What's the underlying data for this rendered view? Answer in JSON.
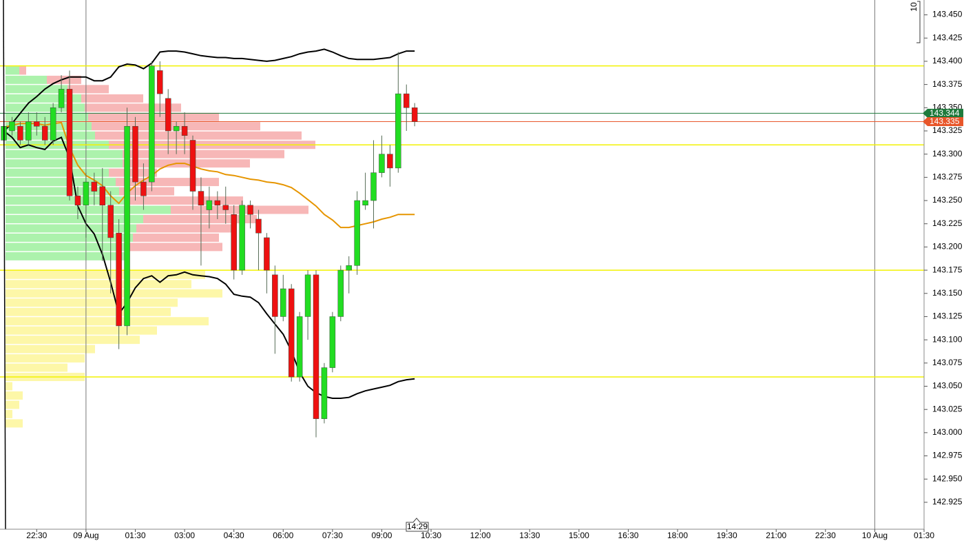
{
  "chart_data": {
    "type": "candlestick",
    "xlim": [
      -157,
      1530
    ],
    "xticks": [
      {
        "value": -90,
        "label": "22:30"
      },
      {
        "value": 0,
        "label": "09 Aug"
      },
      {
        "value": 90,
        "label": "01:30"
      },
      {
        "value": 180,
        "label": "03:00"
      },
      {
        "value": 270,
        "label": "04:30"
      },
      {
        "value": 360,
        "label": "06:00"
      },
      {
        "value": 450,
        "label": "07:30"
      },
      {
        "value": 540,
        "label": "09:00"
      },
      {
        "value": 630,
        "label": "10:30"
      },
      {
        "value": 720,
        "label": "12:00"
      },
      {
        "value": 810,
        "label": "13:30"
      },
      {
        "value": 900,
        "label": "15:00"
      },
      {
        "value": 990,
        "label": "16:30"
      },
      {
        "value": 1080,
        "label": "18:00"
      },
      {
        "value": 1170,
        "label": "19:30"
      },
      {
        "value": 1260,
        "label": "21:00"
      },
      {
        "value": 1350,
        "label": "22:30"
      },
      {
        "value": 1440,
        "label": "10 Aug"
      },
      {
        "value": 1530,
        "label": "01:30"
      }
    ],
    "separators": [
      0,
      1440
    ],
    "ylim": [
      142.896,
      143.466
    ],
    "yticks": [
      {
        "value": 143.45,
        "label": "143.450"
      },
      143.425,
      {
        "value": 143.4,
        "label": "143.400"
      },
      143.375,
      {
        "value": 143.35,
        "label": "143.350"
      },
      143.325,
      {
        "value": 143.3,
        "label": "143.300"
      },
      143.275,
      {
        "value": 143.25,
        "label": "143.250"
      },
      143.225,
      {
        "value": 143.2,
        "label": "143.200"
      },
      143.175,
      {
        "value": 143.15,
        "label": "143.150"
      },
      143.125,
      {
        "value": 143.1,
        "label": "143.100"
      },
      143.075,
      {
        "value": 143.05,
        "label": "143.050"
      },
      143.025,
      {
        "value": 143,
        "label": "143.000"
      },
      142.975,
      {
        "value": 142.95,
        "label": "142.950"
      },
      142.925
    ],
    "up_color": "#22dd22",
    "down_color": "#ee1111",
    "x": [
      -150,
      -135,
      -120,
      -105,
      -90,
      -75,
      -60,
      -45,
      -30,
      -15,
      0,
      15,
      30,
      45,
      60,
      75,
      90,
      105,
      120,
      135,
      150,
      165,
      180,
      195,
      210,
      225,
      240,
      255,
      270,
      285,
      300,
      315,
      330,
      345,
      360,
      375,
      390,
      405,
      420,
      435,
      450,
      465,
      480,
      495,
      510,
      525,
      540,
      555,
      570,
      585,
      600
    ],
    "open": [
      143.315,
      143.325,
      143.33,
      143.315,
      143.335,
      143.33,
      143.315,
      143.35,
      143.37,
      143.255,
      143.245,
      143.27,
      143.265,
      143.245,
      143.215,
      143.115,
      143.33,
      143.27,
      143.27,
      143.39,
      143.36,
      143.325,
      143.33,
      143.315,
      143.26,
      143.24,
      143.25,
      143.245,
      143.235,
      143.175,
      143.245,
      143.23,
      143.21,
      143.17,
      143.125,
      143.155,
      143.06,
      143.125,
      143.17,
      143.015,
      143.07,
      143.125,
      143.175,
      143.18,
      143.245,
      143.25,
      143.28,
      143.3,
      143.285,
      143.365,
      143.35
    ],
    "high": [
      143.335,
      143.34,
      143.335,
      143.345,
      143.345,
      143.34,
      143.355,
      143.385,
      143.39,
      143.265,
      143.28,
      143.28,
      143.285,
      143.26,
      143.23,
      143.35,
      143.34,
      143.29,
      143.4,
      143.4,
      143.37,
      143.335,
      143.345,
      143.32,
      143.275,
      143.265,
      143.26,
      143.265,
      143.245,
      143.25,
      143.25,
      143.24,
      143.215,
      143.18,
      143.17,
      143.16,
      143.13,
      143.175,
      143.175,
      143.075,
      143.13,
      143.18,
      143.19,
      143.26,
      143.28,
      143.315,
      143.32,
      143.31,
      143.41,
      143.375,
      143.355
    ],
    "low": [
      143.31,
      143.32,
      143.31,
      143.31,
      143.32,
      143.31,
      143.31,
      143.345,
      143.25,
      143.23,
      143.21,
      143.245,
      143.185,
      143.15,
      143.09,
      143.105,
      143.25,
      143.24,
      143.26,
      143.34,
      143.3,
      143.3,
      143.3,
      143.24,
      143.18,
      143.22,
      143.23,
      143.225,
      143.165,
      143.17,
      143.22,
      143.175,
      143.15,
      143.085,
      143.12,
      143.055,
      143.055,
      143.1,
      142.995,
      143.01,
      143.065,
      143.12,
      143.15,
      143.17,
      143.24,
      143.22,
      143.275,
      143.265,
      143.28,
      143.325,
      143.33
    ],
    "close": [
      143.33,
      143.335,
      143.315,
      143.335,
      143.33,
      143.315,
      143.35,
      143.37,
      143.255,
      143.245,
      143.27,
      143.26,
      143.245,
      143.21,
      143.115,
      143.33,
      143.27,
      143.255,
      143.395,
      143.365,
      143.325,
      143.33,
      143.32,
      143.26,
      143.245,
      143.25,
      143.245,
      143.24,
      143.175,
      143.245,
      143.235,
      143.215,
      143.175,
      143.125,
      143.155,
      143.06,
      143.125,
      143.17,
      143.015,
      143.07,
      143.125,
      143.175,
      143.18,
      143.25,
      143.25,
      143.28,
      143.3,
      143.285,
      143.365,
      143.35,
      143.335
    ],
    "lines": [
      {
        "color": "#000000",
        "values": [
          143.325,
          143.333,
          143.344,
          143.355,
          143.362,
          143.37,
          143.376,
          143.38,
          143.383,
          143.383,
          143.383,
          143.379,
          143.379,
          143.383,
          143.394,
          143.397,
          143.396,
          143.392,
          143.398,
          143.41,
          143.411,
          143.411,
          143.41,
          143.408,
          143.406,
          143.405,
          143.404,
          143.404,
          143.403,
          143.403,
          143.402,
          143.401,
          143.4,
          143.401,
          143.403,
          143.405,
          143.408,
          143.41,
          143.411,
          143.413,
          143.41,
          143.406,
          143.403,
          143.402,
          143.402,
          143.402,
          143.403,
          143.404,
          143.408,
          143.411,
          143.411
        ]
      },
      {
        "color": "#e69500",
        "values": [
          143.329,
          143.331,
          143.333,
          143.333,
          143.333,
          143.331,
          143.333,
          143.334,
          143.307,
          143.288,
          143.277,
          143.272,
          143.266,
          143.255,
          143.247,
          143.258,
          143.266,
          143.272,
          143.277,
          143.284,
          143.288,
          143.29,
          143.29,
          143.287,
          143.284,
          143.282,
          143.281,
          143.278,
          143.277,
          143.275,
          143.273,
          143.272,
          143.27,
          143.269,
          143.267,
          143.264,
          143.258,
          143.251,
          143.244,
          143.235,
          143.229,
          143.221,
          143.221,
          143.223,
          143.225,
          143.227,
          143.23,
          143.232,
          143.235,
          143.235,
          143.235
        ]
      },
      {
        "color": "#000000",
        "values": [
          143.325,
          143.318,
          143.307,
          143.31,
          143.307,
          143.305,
          143.314,
          143.318,
          143.296,
          143.244,
          143.225,
          143.214,
          143.192,
          143.162,
          143.128,
          143.14,
          143.156,
          143.166,
          143.169,
          143.162,
          143.169,
          143.17,
          143.173,
          143.17,
          143.169,
          143.168,
          143.166,
          143.16,
          143.149,
          143.147,
          143.146,
          143.14,
          143.128,
          143.117,
          143.106,
          143.088,
          143.065,
          143.05,
          143.043,
          143.039,
          143.037,
          143.037,
          143.038,
          143.042,
          143.045,
          143.047,
          143.049,
          143.051,
          143.055,
          143.057,
          143.058
        ]
      }
    ],
    "levels": [
      {
        "value": 143.395,
        "color": "#f2f200"
      },
      {
        "value": 143.31,
        "color": "#f2f200"
      },
      {
        "value": 143.175,
        "color": "#f2f200"
      },
      {
        "value": 143.06,
        "color": "#f2f200"
      }
    ],
    "price_tags": [
      {
        "value": 143.344,
        "color": "#1e7a3c"
      },
      {
        "value": 143.335,
        "color": "#e8562a"
      }
    ],
    "volume_profile": {
      "value_area": {
        "buy_color": "#9ef09e",
        "sell_color": "#f6aaaa",
        "prices": [
          143.39,
          143.38,
          143.37,
          143.36,
          143.35,
          143.34,
          143.33,
          143.32,
          143.31,
          143.3,
          143.29,
          143.28,
          143.27,
          143.26,
          143.25,
          143.24,
          143.23,
          143.22,
          143.21,
          143.2,
          143.19
        ],
        "buy": [
          20,
          60,
          90,
          110,
          115,
          120,
          125,
          130,
          150,
          170,
          170,
          150,
          160,
          165,
          180,
          240,
          200,
          190,
          185,
          180,
          175
        ],
        "sell": [
          10,
          50,
          60,
          90,
          140,
          190,
          245,
          300,
          300,
          235,
          185,
          70,
          150,
          80,
          165,
          200,
          165,
          145,
          125,
          135,
          0
        ]
      },
      "outside": {
        "color": "#fdf7a8",
        "prices": [
          143.17,
          143.16,
          143.15,
          143.14,
          143.13,
          143.12,
          143.11,
          143.1,
          143.09,
          143.08,
          143.07,
          143.06,
          143.05,
          143.04,
          143.03,
          143.02,
          143.01
        ],
        "volumes": [
          290,
          270,
          315,
          250,
          240,
          295,
          220,
          195,
          130,
          115,
          90,
          115,
          10,
          25,
          20,
          10,
          25
        ]
      }
    },
    "cursor_time": "14:29",
    "scale_label": "10"
  }
}
